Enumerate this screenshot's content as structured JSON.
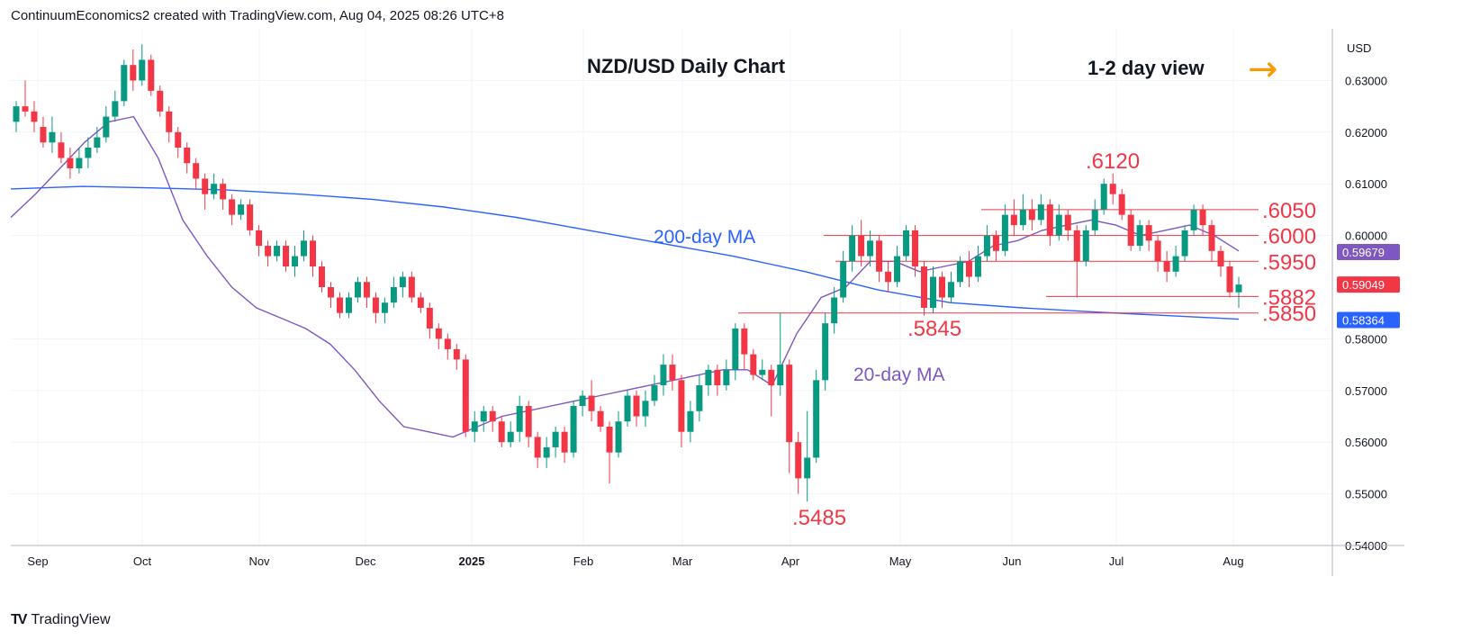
{
  "header": {
    "text": "ContinuumEconomics2 created with TradingView.com, Aug 04, 2025 08:26 UTC+8"
  },
  "footer": {
    "brand": "TradingView"
  },
  "chart_data": {
    "type": "candlestick",
    "title": "NZD/USD Daily Chart",
    "view_label": "1-2 day view",
    "view_arrow": "→",
    "currency": "USD",
    "ylim": [
      0.54,
      0.64
    ],
    "y_ticks": [
      "0.63000",
      "0.62000",
      "0.61000",
      "0.60000",
      "0.58000",
      "0.57000",
      "0.56000",
      "0.55000",
      "0.54000"
    ],
    "x_ticks": [
      "Sep",
      "Oct",
      "Nov",
      "Dec",
      "2025",
      "Feb",
      "Mar",
      "Apr",
      "May",
      "Jun",
      "Jul",
      "Aug"
    ],
    "price_badges": [
      {
        "label": "0.59679",
        "value": 0.59679,
        "color": "#7e57c2"
      },
      {
        "label": "0.59049",
        "value": 0.59049,
        "color": "#f23645"
      },
      {
        "label": "0.58364",
        "value": 0.58364,
        "color": "#2962ff"
      }
    ],
    "levels": [
      {
        "label": ".6050",
        "value": 0.605
      },
      {
        "label": ".6000",
        "value": 0.6
      },
      {
        "label": ".5950",
        "value": 0.595
      },
      {
        "label": ".5882",
        "value": 0.5882
      },
      {
        "label": ".5850",
        "value": 0.585
      }
    ],
    "extreme_labels": [
      {
        "label": ".6120",
        "value": 0.612
      },
      {
        "label": ".5845",
        "value": 0.5845
      },
      {
        "label": ".5485",
        "value": 0.5485
      }
    ],
    "ma_labels": {
      "ma200": "200-day MA",
      "ma20": "20-day MA"
    },
    "colors": {
      "up": "#089981",
      "down": "#f23645",
      "ma200": "#2962ff",
      "ma20": "#7e57c2",
      "levels": "#f23645",
      "arrow": "#ff9800"
    },
    "ma200": [
      0.609,
      0.6095,
      0.6092,
      0.6088,
      0.608,
      0.607,
      0.6055,
      0.6035,
      0.601,
      0.5985,
      0.596,
      0.593,
      0.5895,
      0.587,
      0.586,
      0.5852,
      0.5845,
      0.5838
    ],
    "ma20": [
      0.6035,
      0.608,
      0.613,
      0.618,
      0.622,
      0.623,
      0.615,
      0.603,
      0.596,
      0.59,
      0.586,
      0.584,
      0.582,
      0.579,
      0.574,
      0.568,
      0.563,
      0.562,
      0.561,
      0.563,
      0.565,
      0.566,
      0.567,
      0.568,
      0.569,
      0.57,
      0.571,
      0.572,
      0.573,
      0.574,
      0.574,
      0.571,
      0.581,
      0.588,
      0.59,
      0.595,
      0.595,
      0.593,
      0.594,
      0.595,
      0.598,
      0.599,
      0.601,
      0.602,
      0.603,
      0.602,
      0.6,
      0.601,
      0.602,
      0.6,
      0.597
    ],
    "candles": [
      [
        0.622,
        0.625,
        0.62,
        0.626
      ],
      [
        0.625,
        0.624,
        0.623,
        0.63
      ],
      [
        0.624,
        0.622,
        0.62,
        0.626
      ],
      [
        0.621,
        0.618,
        0.617,
        0.623
      ],
      [
        0.618,
        0.62,
        0.616,
        0.623
      ],
      [
        0.618,
        0.615,
        0.614,
        0.62
      ],
      [
        0.615,
        0.613,
        0.611,
        0.617
      ],
      [
        0.613,
        0.615,
        0.612,
        0.617
      ],
      [
        0.615,
        0.617,
        0.613,
        0.619
      ],
      [
        0.617,
        0.619,
        0.616,
        0.621
      ],
      [
        0.619,
        0.623,
        0.618,
        0.625
      ],
      [
        0.623,
        0.626,
        0.622,
        0.628
      ],
      [
        0.626,
        0.633,
        0.625,
        0.634
      ],
      [
        0.633,
        0.63,
        0.628,
        0.636
      ],
      [
        0.63,
        0.634,
        0.629,
        0.637
      ],
      [
        0.634,
        0.628,
        0.627,
        0.635
      ],
      [
        0.628,
        0.624,
        0.623,
        0.629
      ],
      [
        0.624,
        0.62,
        0.618,
        0.625
      ],
      [
        0.62,
        0.617,
        0.615,
        0.621
      ],
      [
        0.617,
        0.614,
        0.612,
        0.618
      ],
      [
        0.614,
        0.611,
        0.609,
        0.615
      ],
      [
        0.611,
        0.608,
        0.605,
        0.612
      ],
      [
        0.608,
        0.61,
        0.607,
        0.612
      ],
      [
        0.61,
        0.607,
        0.605,
        0.611
      ],
      [
        0.607,
        0.604,
        0.602,
        0.608
      ],
      [
        0.604,
        0.606,
        0.603,
        0.607
      ],
      [
        0.606,
        0.601,
        0.6,
        0.607
      ],
      [
        0.601,
        0.598,
        0.596,
        0.602
      ],
      [
        0.598,
        0.596,
        0.594,
        0.599
      ],
      [
        0.596,
        0.598,
        0.595,
        0.599
      ],
      [
        0.598,
        0.594,
        0.593,
        0.599
      ],
      [
        0.594,
        0.596,
        0.592,
        0.598
      ],
      [
        0.596,
        0.599,
        0.595,
        0.601
      ],
      [
        0.599,
        0.594,
        0.592,
        0.6
      ],
      [
        0.594,
        0.59,
        0.589,
        0.595
      ],
      [
        0.59,
        0.588,
        0.586,
        0.591
      ],
      [
        0.588,
        0.585,
        0.584,
        0.589
      ],
      [
        0.585,
        0.588,
        0.584,
        0.589
      ],
      [
        0.588,
        0.591,
        0.587,
        0.592
      ],
      [
        0.591,
        0.588,
        0.586,
        0.592
      ],
      [
        0.588,
        0.585,
        0.583,
        0.589
      ],
      [
        0.585,
        0.587,
        0.583,
        0.588
      ],
      [
        0.587,
        0.59,
        0.586,
        0.592
      ],
      [
        0.59,
        0.592,
        0.588,
        0.593
      ],
      [
        0.592,
        0.588,
        0.587,
        0.593
      ],
      [
        0.588,
        0.586,
        0.585,
        0.589
      ],
      [
        0.586,
        0.582,
        0.58,
        0.587
      ],
      [
        0.582,
        0.58,
        0.578,
        0.583
      ],
      [
        0.58,
        0.578,
        0.576,
        0.581
      ],
      [
        0.578,
        0.576,
        0.574,
        0.579
      ],
      [
        0.576,
        0.562,
        0.561,
        0.577
      ],
      [
        0.562,
        0.564,
        0.56,
        0.566
      ],
      [
        0.564,
        0.566,
        0.562,
        0.567
      ],
      [
        0.566,
        0.564,
        0.562,
        0.567
      ],
      [
        0.564,
        0.56,
        0.559,
        0.565
      ],
      [
        0.56,
        0.562,
        0.559,
        0.564
      ],
      [
        0.562,
        0.567,
        0.56,
        0.569
      ],
      [
        0.567,
        0.561,
        0.559,
        0.568
      ],
      [
        0.561,
        0.557,
        0.555,
        0.562
      ],
      [
        0.557,
        0.559,
        0.555,
        0.561
      ],
      [
        0.559,
        0.562,
        0.557,
        0.563
      ],
      [
        0.562,
        0.558,
        0.556,
        0.563
      ],
      [
        0.558,
        0.567,
        0.557,
        0.568
      ],
      [
        0.567,
        0.569,
        0.565,
        0.57
      ],
      [
        0.569,
        0.566,
        0.564,
        0.572
      ],
      [
        0.566,
        0.563,
        0.562,
        0.567
      ],
      [
        0.563,
        0.558,
        0.552,
        0.564
      ],
      [
        0.558,
        0.564,
        0.557,
        0.566
      ],
      [
        0.564,
        0.569,
        0.563,
        0.57
      ],
      [
        0.569,
        0.565,
        0.563,
        0.57
      ],
      [
        0.565,
        0.568,
        0.563,
        0.57
      ],
      [
        0.568,
        0.571,
        0.567,
        0.573
      ],
      [
        0.571,
        0.575,
        0.569,
        0.577
      ],
      [
        0.575,
        0.572,
        0.57,
        0.577
      ],
      [
        0.572,
        0.562,
        0.559,
        0.573
      ],
      [
        0.562,
        0.566,
        0.56,
        0.568
      ],
      [
        0.566,
        0.571,
        0.564,
        0.573
      ],
      [
        0.571,
        0.574,
        0.569,
        0.575
      ],
      [
        0.574,
        0.571,
        0.569,
        0.575
      ],
      [
        0.571,
        0.574,
        0.57,
        0.576
      ],
      [
        0.574,
        0.582,
        0.572,
        0.583
      ],
      [
        0.582,
        0.577,
        0.574,
        0.583
      ],
      [
        0.577,
        0.573,
        0.572,
        0.578
      ],
      [
        0.573,
        0.574,
        0.572,
        0.576
      ],
      [
        0.574,
        0.571,
        0.565,
        0.575
      ],
      [
        0.571,
        0.575,
        0.569,
        0.585
      ],
      [
        0.575,
        0.56,
        0.554,
        0.576
      ],
      [
        0.56,
        0.553,
        0.55,
        0.562
      ],
      [
        0.553,
        0.557,
        0.5485,
        0.566
      ],
      [
        0.557,
        0.572,
        0.556,
        0.574
      ],
      [
        0.572,
        0.583,
        0.57,
        0.585
      ],
      [
        0.583,
        0.588,
        0.581,
        0.59
      ],
      [
        0.588,
        0.595,
        0.587,
        0.597
      ],
      [
        0.595,
        0.6,
        0.593,
        0.602
      ],
      [
        0.6,
        0.596,
        0.594,
        0.603
      ],
      [
        0.596,
        0.599,
        0.594,
        0.601
      ],
      [
        0.599,
        0.593,
        0.591,
        0.6
      ],
      [
        0.593,
        0.591,
        0.589,
        0.595
      ],
      [
        0.591,
        0.596,
        0.59,
        0.598
      ],
      [
        0.596,
        0.601,
        0.595,
        0.602
      ],
      [
        0.601,
        0.594,
        0.592,
        0.602
      ],
      [
        0.594,
        0.586,
        0.5845,
        0.595
      ],
      [
        0.586,
        0.592,
        0.585,
        0.594
      ],
      [
        0.592,
        0.588,
        0.586,
        0.593
      ],
      [
        0.588,
        0.591,
        0.587,
        0.593
      ],
      [
        0.591,
        0.595,
        0.59,
        0.596
      ],
      [
        0.595,
        0.592,
        0.59,
        0.597
      ],
      [
        0.592,
        0.596,
        0.591,
        0.598
      ],
      [
        0.596,
        0.6,
        0.595,
        0.602
      ],
      [
        0.6,
        0.597,
        0.595,
        0.601
      ],
      [
        0.597,
        0.604,
        0.596,
        0.606
      ],
      [
        0.604,
        0.602,
        0.6,
        0.607
      ],
      [
        0.602,
        0.605,
        0.601,
        0.608
      ],
      [
        0.605,
        0.603,
        0.601,
        0.607
      ],
      [
        0.603,
        0.606,
        0.602,
        0.608
      ],
      [
        0.606,
        0.6,
        0.598,
        0.607
      ],
      [
        0.6,
        0.604,
        0.599,
        0.606
      ],
      [
        0.604,
        0.601,
        0.599,
        0.605
      ],
      [
        0.601,
        0.595,
        0.588,
        0.602
      ],
      [
        0.595,
        0.601,
        0.594,
        0.602
      ],
      [
        0.601,
        0.605,
        0.6,
        0.607
      ],
      [
        0.605,
        0.61,
        0.604,
        0.611
      ],
      [
        0.61,
        0.608,
        0.606,
        0.612
      ],
      [
        0.608,
        0.604,
        0.603,
        0.609
      ],
      [
        0.604,
        0.598,
        0.597,
        0.605
      ],
      [
        0.598,
        0.602,
        0.597,
        0.603
      ],
      [
        0.602,
        0.599,
        0.597,
        0.603
      ],
      [
        0.599,
        0.595,
        0.593,
        0.6
      ],
      [
        0.595,
        0.593,
        0.591,
        0.597
      ],
      [
        0.593,
        0.596,
        0.592,
        0.598
      ],
      [
        0.596,
        0.601,
        0.595,
        0.602
      ],
      [
        0.601,
        0.605,
        0.6,
        0.606
      ],
      [
        0.605,
        0.602,
        0.6,
        0.606
      ],
      [
        0.602,
        0.597,
        0.595,
        0.603
      ],
      [
        0.597,
        0.594,
        0.592,
        0.598
      ],
      [
        0.594,
        0.589,
        0.588,
        0.595
      ],
      [
        0.589,
        0.5905,
        0.586,
        0.592
      ]
    ]
  }
}
